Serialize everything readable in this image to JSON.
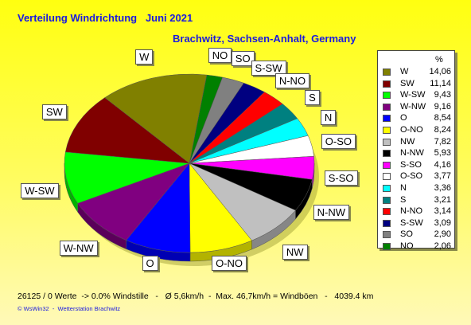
{
  "title": "Verteilung Windrichtung   Juni 2021",
  "subtitle": "Brachwitz, Sachsen-Anhalt, Germany",
  "legend_header": "%",
  "footer": "26125 / 0 Werte  -> 0.0% Windstille   -   Ø 5,6km/h  -  Max. 46,7km/h = Windböen   -   4039.4 km",
  "copyright": "© WsWin32  -  Wetterstation Brachwitz",
  "chart_data": {
    "type": "pie",
    "slices": [
      {
        "label": "W",
        "value": 14.06,
        "value_text": "14,06",
        "color": "#808000"
      },
      {
        "label": "SW",
        "value": 11.14,
        "value_text": "11,14",
        "color": "#800000"
      },
      {
        "label": "W-SW",
        "value": 9.43,
        "value_text": "9,43",
        "color": "#00ff00"
      },
      {
        "label": "W-NW",
        "value": 9.16,
        "value_text": "9,16",
        "color": "#800080"
      },
      {
        "label": "O",
        "value": 8.54,
        "value_text": "8,54",
        "color": "#0000ff"
      },
      {
        "label": "O-NO",
        "value": 8.24,
        "value_text": "8,24",
        "color": "#ffff00"
      },
      {
        "label": "NW",
        "value": 7.82,
        "value_text": "7,82",
        "color": "#c0c0c0"
      },
      {
        "label": "N-NW",
        "value": 5.93,
        "value_text": "5,93",
        "color": "#000000"
      },
      {
        "label": "S-SO",
        "value": 4.16,
        "value_text": "4,16",
        "color": "#ff00ff"
      },
      {
        "label": "O-SO",
        "value": 3.77,
        "value_text": "3,77",
        "color": "#ffffff"
      },
      {
        "label": "N",
        "value": 3.36,
        "value_text": "3,36",
        "color": "#00ffff"
      },
      {
        "label": "S",
        "value": 3.21,
        "value_text": "3,21",
        "color": "#008080"
      },
      {
        "label": "N-NO",
        "value": 3.14,
        "value_text": "3,14",
        "color": "#ff0000"
      },
      {
        "label": "S-SW",
        "value": 3.09,
        "value_text": "3,09",
        "color": "#000080"
      },
      {
        "label": "SO",
        "value": 2.9,
        "value_text": "2,90",
        "color": "#808080"
      },
      {
        "label": "NO",
        "value": 2.06,
        "value_text": "2,06",
        "color": "#008000"
      }
    ],
    "pie_order": [
      "NO",
      "SO",
      "S-SW",
      "N-NO",
      "S",
      "N",
      "O-SO",
      "S-SO",
      "N-NW",
      "NW",
      "O-NO",
      "O",
      "W-NW",
      "W-SW",
      "SW",
      "W"
    ],
    "background_color": "#ffff00",
    "title_color": "#0000ff"
  }
}
